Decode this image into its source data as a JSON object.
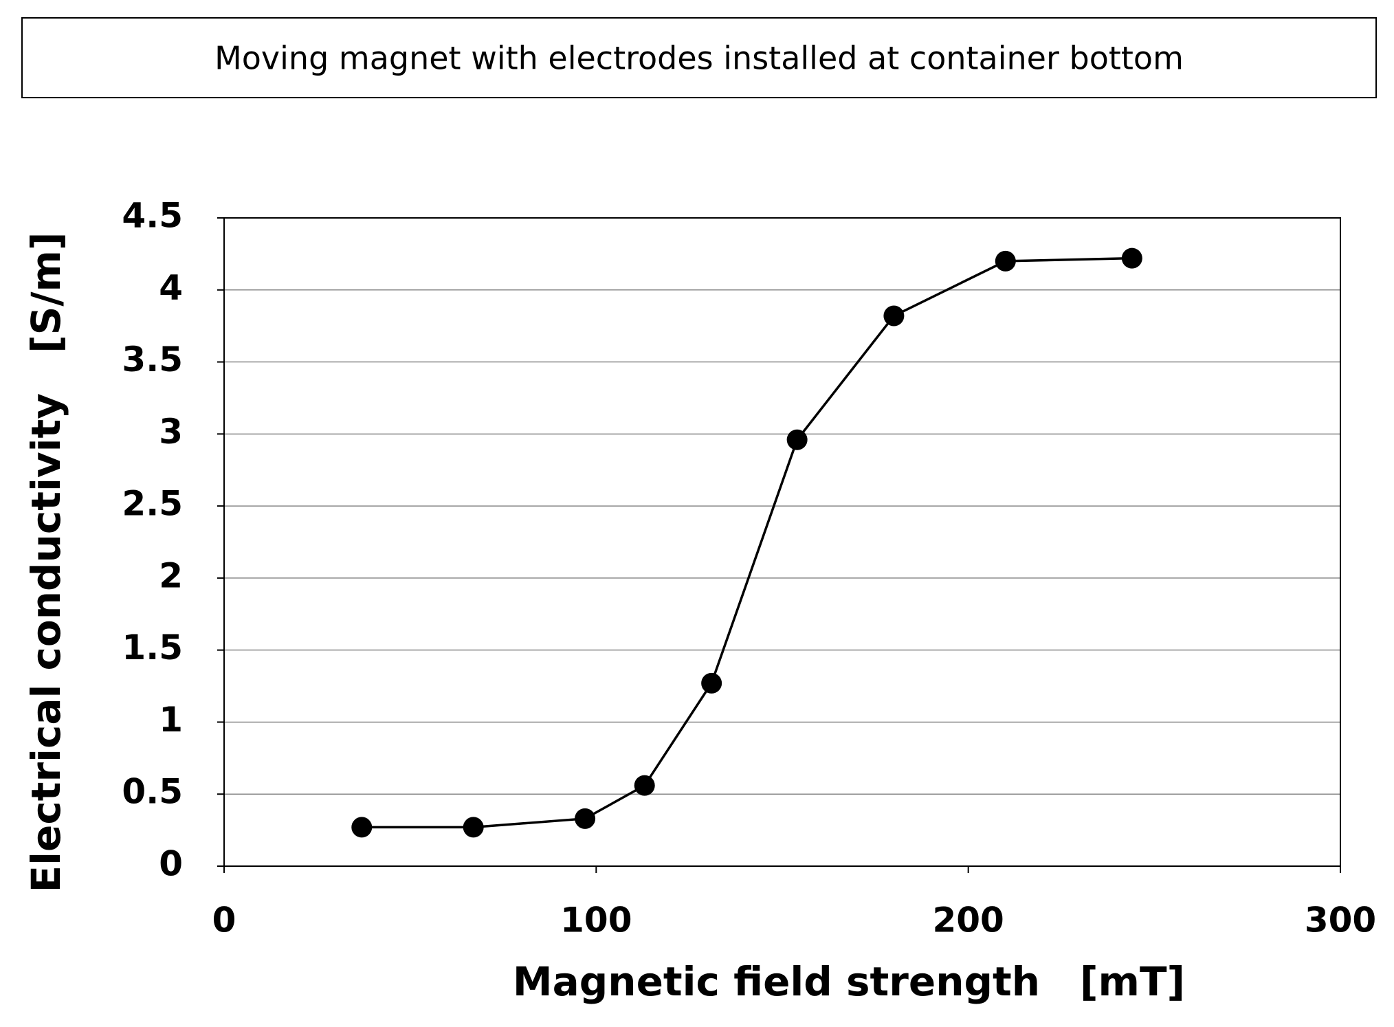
{
  "chart_data": {
    "type": "line",
    "title": "Moving magnet with electrodes installed at container bottom",
    "x_label": "Magnetic field strength　[mT]",
    "y_label": "Electrical conductivity　[S/m]",
    "x": [
      37,
      67,
      97,
      113,
      131,
      154,
      180,
      210,
      244
    ],
    "series": [
      {
        "name": "Electrical conductivity",
        "color": "#000000",
        "values": [
          0.27,
          0.27,
          0.33,
          0.56,
          1.27,
          2.96,
          3.82,
          4.2,
          4.22
        ]
      }
    ],
    "xlim": [
      0,
      300
    ],
    "xticks": [
      0,
      100,
      200,
      300
    ],
    "ylim": [
      0,
      4.5
    ],
    "yticks": [
      0,
      0.5,
      1,
      1.5,
      2,
      2.5,
      3,
      3.5,
      4,
      4.5
    ],
    "grid": true
  }
}
